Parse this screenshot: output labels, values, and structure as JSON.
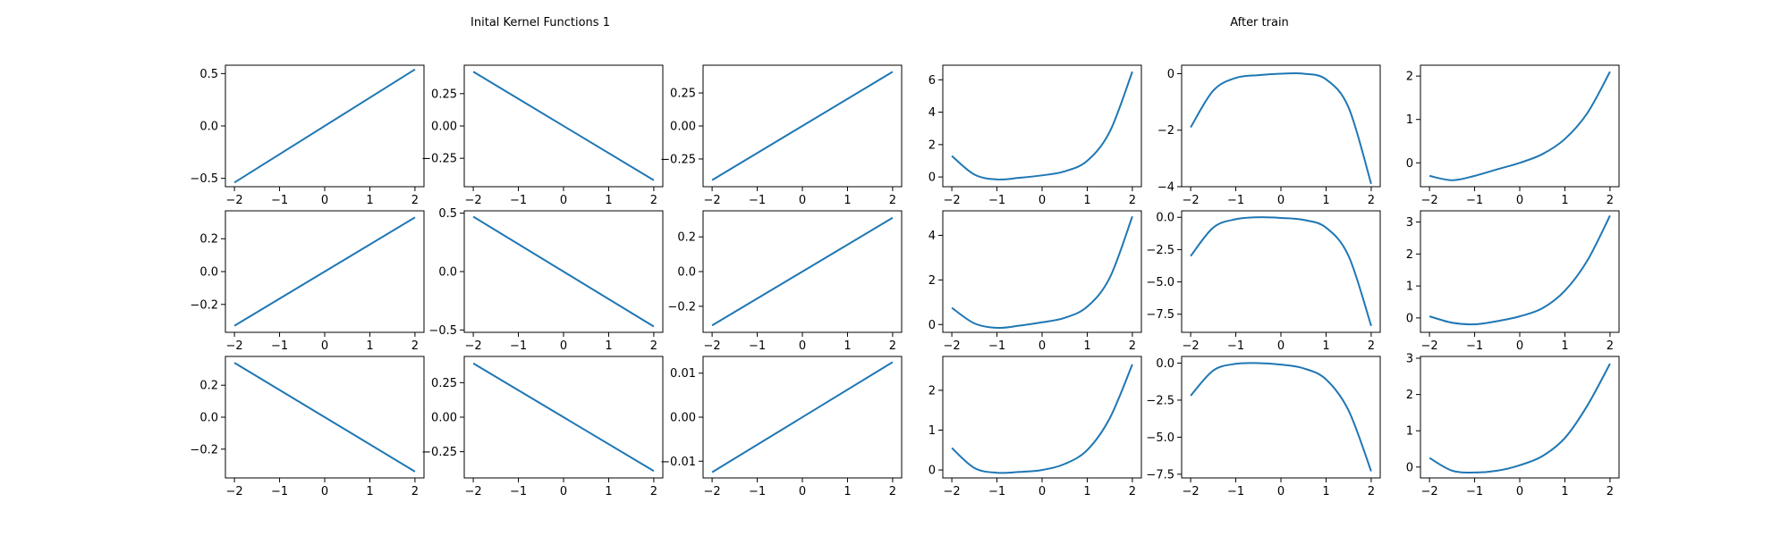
{
  "figure": {
    "title_left": "Inital Kernel Functions 1",
    "title_right": "After train",
    "line_color": "#1f77b4"
  },
  "chart_data": [
    {
      "type": "line",
      "xlim": [
        -2.2,
        2.2
      ],
      "ylim": [
        -0.58,
        0.58
      ],
      "xticks": [
        "−2",
        "−1",
        "0",
        "1",
        "2"
      ],
      "yticks": [
        {
          "v": 0.5,
          "label": "0.5"
        },
        {
          "v": 0,
          "label": "0.0"
        },
        {
          "v": -0.5,
          "label": "−0.5"
        }
      ],
      "series": [
        {
          "x": [
            -2,
            2
          ],
          "y": [
            -0.54,
            0.54
          ]
        }
      ]
    },
    {
      "type": "line",
      "xlim": [
        -2.2,
        2.2
      ],
      "ylim": [
        -0.47,
        0.47
      ],
      "xticks": [
        "−2",
        "−1",
        "0",
        "1",
        "2"
      ],
      "yticks": [
        {
          "v": 0.25,
          "label": "0.25"
        },
        {
          "v": 0,
          "label": "0.00"
        },
        {
          "v": -0.25,
          "label": "−0.25"
        }
      ],
      "series": [
        {
          "x": [
            -2,
            2
          ],
          "y": [
            0.42,
            -0.42
          ]
        }
      ]
    },
    {
      "type": "line",
      "xlim": [
        -2.2,
        2.2
      ],
      "ylim": [
        -0.46,
        0.46
      ],
      "xticks": [
        "−2",
        "−1",
        "0",
        "1",
        "2"
      ],
      "yticks": [
        {
          "v": 0.25,
          "label": "0.25"
        },
        {
          "v": 0,
          "label": "0.00"
        },
        {
          "v": -0.25,
          "label": "−0.25"
        }
      ],
      "series": [
        {
          "x": [
            -2,
            2
          ],
          "y": [
            -0.41,
            0.41
          ]
        }
      ]
    },
    {
      "type": "line",
      "xlim": [
        -2.2,
        2.2
      ],
      "ylim": [
        -0.6,
        6.9
      ],
      "xticks": [
        "−2",
        "−1",
        "0",
        "1",
        "2"
      ],
      "yticks": [
        {
          "v": 6,
          "label": "6"
        },
        {
          "v": 4,
          "label": "4"
        },
        {
          "v": 2,
          "label": "2"
        },
        {
          "v": 0,
          "label": "0"
        }
      ],
      "series": [
        {
          "x": [
            -2,
            -1.5,
            -1,
            -0.5,
            0,
            0.5,
            1,
            1.5,
            2
          ],
          "y": [
            1.3,
            0.15,
            -0.15,
            -0.05,
            0.1,
            0.35,
            1.0,
            2.8,
            6.5
          ]
        }
      ]
    },
    {
      "type": "line",
      "xlim": [
        -2.2,
        2.2
      ],
      "ylim": [
        -4.0,
        0.3
      ],
      "xticks": [
        "−2",
        "−1",
        "0",
        "1",
        "2"
      ],
      "yticks": [
        {
          "v": 0,
          "label": "0"
        },
        {
          "v": -2,
          "label": "−2"
        },
        {
          "v": -4,
          "label": "−4"
        }
      ],
      "series": [
        {
          "x": [
            -2,
            -1.5,
            -1,
            -0.5,
            0,
            0.5,
            1,
            1.5,
            2
          ],
          "y": [
            -1.9,
            -0.6,
            -0.15,
            -0.05,
            0.0,
            0.0,
            -0.2,
            -1.2,
            -3.9
          ]
        }
      ]
    },
    {
      "type": "line",
      "xlim": [
        -2.2,
        2.2
      ],
      "ylim": [
        -0.55,
        2.25
      ],
      "xticks": [
        "−2",
        "−1",
        "0",
        "1",
        "2"
      ],
      "yticks": [
        {
          "v": 2,
          "label": "2"
        },
        {
          "v": 1,
          "label": "1"
        },
        {
          "v": 0,
          "label": "0"
        }
      ],
      "series": [
        {
          "x": [
            -2,
            -1.5,
            -1,
            -0.5,
            0,
            0.5,
            1,
            1.5,
            2
          ],
          "y": [
            -0.3,
            -0.4,
            -0.3,
            -0.15,
            0.0,
            0.2,
            0.55,
            1.15,
            2.1
          ]
        }
      ]
    },
    {
      "type": "line",
      "xlim": [
        -2.2,
        2.2
      ],
      "ylim": [
        -0.37,
        0.37
      ],
      "xticks": [
        "−2",
        "−1",
        "0",
        "1",
        "2"
      ],
      "yticks": [
        {
          "v": 0.2,
          "label": "0.2"
        },
        {
          "v": 0,
          "label": "0.0"
        },
        {
          "v": -0.2,
          "label": "−0.2"
        }
      ],
      "series": [
        {
          "x": [
            -2,
            2
          ],
          "y": [
            -0.33,
            0.33
          ]
        }
      ]
    },
    {
      "type": "line",
      "xlim": [
        -2.2,
        2.2
      ],
      "ylim": [
        -0.52,
        0.52
      ],
      "xticks": [
        "−2",
        "−1",
        "0",
        "1",
        "2"
      ],
      "yticks": [
        {
          "v": 0.5,
          "label": "0.5"
        },
        {
          "v": 0,
          "label": "0.0"
        },
        {
          "v": -0.5,
          "label": "−0.5"
        }
      ],
      "series": [
        {
          "x": [
            -2,
            2
          ],
          "y": [
            0.47,
            -0.47
          ]
        }
      ]
    },
    {
      "type": "line",
      "xlim": [
        -2.2,
        2.2
      ],
      "ylim": [
        -0.35,
        0.35
      ],
      "xticks": [
        "−2",
        "−1",
        "0",
        "1",
        "2"
      ],
      "yticks": [
        {
          "v": 0.2,
          "label": "0.2"
        },
        {
          "v": 0,
          "label": "0.0"
        },
        {
          "v": -0.2,
          "label": "−0.2"
        }
      ],
      "series": [
        {
          "x": [
            -2,
            2
          ],
          "y": [
            -0.31,
            0.31
          ]
        }
      ]
    },
    {
      "type": "line",
      "xlim": [
        -2.2,
        2.2
      ],
      "ylim": [
        -0.35,
        5.1
      ],
      "xticks": [
        "−2",
        "−1",
        "0",
        "1",
        "2"
      ],
      "yticks": [
        {
          "v": 4,
          "label": "4"
        },
        {
          "v": 2,
          "label": "2"
        },
        {
          "v": 0,
          "label": "0"
        }
      ],
      "series": [
        {
          "x": [
            -2,
            -1.5,
            -1,
            -0.5,
            0,
            0.5,
            1,
            1.5,
            2
          ],
          "y": [
            0.75,
            0.05,
            -0.15,
            -0.05,
            0.1,
            0.3,
            0.8,
            2.1,
            4.85
          ]
        }
      ]
    },
    {
      "type": "line",
      "xlim": [
        -2.2,
        2.2
      ],
      "ylim": [
        -8.9,
        0.5
      ],
      "xticks": [
        "−2",
        "−1",
        "0",
        "1",
        "2"
      ],
      "yticks": [
        {
          "v": 0,
          "label": "0.0"
        },
        {
          "v": -2.5,
          "label": "−2.5"
        },
        {
          "v": -5,
          "label": "−5.0"
        },
        {
          "v": -7.5,
          "label": "−7.5"
        }
      ],
      "series": [
        {
          "x": [
            -2,
            -1.5,
            -1,
            -0.5,
            0,
            0.5,
            1,
            1.5,
            2
          ],
          "y": [
            -3.0,
            -0.8,
            -0.15,
            0.0,
            -0.05,
            -0.2,
            -0.8,
            -3.0,
            -8.4
          ]
        }
      ]
    },
    {
      "type": "line",
      "xlim": [
        -2.2,
        2.2
      ],
      "ylim": [
        -0.45,
        3.35
      ],
      "xticks": [
        "−2",
        "−1",
        "0",
        "1",
        "2"
      ],
      "yticks": [
        {
          "v": 3,
          "label": "3"
        },
        {
          "v": 2,
          "label": "2"
        },
        {
          "v": 1,
          "label": "1"
        },
        {
          "v": 0,
          "label": "0"
        }
      ],
      "series": [
        {
          "x": [
            -2,
            -1.5,
            -1,
            -0.5,
            0,
            0.5,
            1,
            1.5,
            2
          ],
          "y": [
            0.05,
            -0.15,
            -0.2,
            -0.1,
            0.05,
            0.3,
            0.85,
            1.8,
            3.2
          ]
        }
      ]
    },
    {
      "type": "line",
      "xlim": [
        -2.2,
        2.2
      ],
      "ylim": [
        -0.38,
        0.38
      ],
      "xticks": [
        "−2",
        "−1",
        "0",
        "1",
        "2"
      ],
      "yticks": [
        {
          "v": 0.2,
          "label": "0.2"
        },
        {
          "v": 0,
          "label": "0.0"
        },
        {
          "v": -0.2,
          "label": "−0.2"
        }
      ],
      "series": [
        {
          "x": [
            -2,
            2
          ],
          "y": [
            0.34,
            -0.34
          ]
        }
      ]
    },
    {
      "type": "line",
      "xlim": [
        -2.2,
        2.2
      ],
      "ylim": [
        -0.44,
        0.44
      ],
      "xticks": [
        "−2",
        "−1",
        "0",
        "1",
        "2"
      ],
      "yticks": [
        {
          "v": 0.25,
          "label": "0.25"
        },
        {
          "v": 0,
          "label": "0.00"
        },
        {
          "v": -0.25,
          "label": "−0.25"
        }
      ],
      "series": [
        {
          "x": [
            -2,
            2
          ],
          "y": [
            0.39,
            -0.39
          ]
        }
      ]
    },
    {
      "type": "line",
      "xlim": [
        -2.2,
        2.2
      ],
      "ylim": [
        -0.0138,
        0.0138
      ],
      "xticks": [
        "−2",
        "−1",
        "0",
        "1",
        "2"
      ],
      "yticks": [
        {
          "v": 0.01,
          "label": "0.01"
        },
        {
          "v": 0,
          "label": "0.00"
        },
        {
          "v": -0.01,
          "label": "−0.01"
        }
      ],
      "series": [
        {
          "x": [
            -2,
            2
          ],
          "y": [
            -0.0125,
            0.0125
          ]
        }
      ]
    },
    {
      "type": "line",
      "xlim": [
        -2.2,
        2.2
      ],
      "ylim": [
        -0.2,
        2.85
      ],
      "xticks": [
        "−2",
        "−1",
        "0",
        "1",
        "2"
      ],
      "yticks": [
        {
          "v": 2,
          "label": "2"
        },
        {
          "v": 1,
          "label": "1"
        },
        {
          "v": 0,
          "label": "0"
        }
      ],
      "series": [
        {
          "x": [
            -2,
            -1.5,
            -1,
            -0.5,
            0,
            0.5,
            1,
            1.5,
            2
          ],
          "y": [
            0.55,
            0.05,
            -0.07,
            -0.05,
            0.0,
            0.15,
            0.5,
            1.3,
            2.65
          ]
        }
      ]
    },
    {
      "type": "line",
      "xlim": [
        -2.2,
        2.2
      ],
      "ylim": [
        -7.75,
        0.45
      ],
      "xticks": [
        "−2",
        "−1",
        "0",
        "1",
        "2"
      ],
      "yticks": [
        {
          "v": 0,
          "label": "0.0"
        },
        {
          "v": -2.5,
          "label": "−2.5"
        },
        {
          "v": -5,
          "label": "−5.0"
        },
        {
          "v": -7.5,
          "label": "−7.5"
        }
      ],
      "series": [
        {
          "x": [
            -2,
            -1.5,
            -1,
            -0.5,
            0,
            0.5,
            1,
            1.5,
            2
          ],
          "y": [
            -2.2,
            -0.5,
            -0.05,
            0.0,
            -0.1,
            -0.35,
            -1.1,
            -3.2,
            -7.3
          ]
        }
      ]
    },
    {
      "type": "line",
      "xlim": [
        -2.2,
        2.2
      ],
      "ylim": [
        -0.3,
        3.05
      ],
      "xticks": [
        "−2",
        "−1",
        "0",
        "1",
        "2"
      ],
      "yticks": [
        {
          "v": 3,
          "label": "3"
        },
        {
          "v": 2,
          "label": "2"
        },
        {
          "v": 1,
          "label": "1"
        },
        {
          "v": 0,
          "label": "0"
        }
      ],
      "series": [
        {
          "x": [
            -2,
            -1.5,
            -1,
            -0.5,
            0,
            0.5,
            1,
            1.5,
            2
          ],
          "y": [
            0.25,
            -0.1,
            -0.15,
            -0.1,
            0.05,
            0.3,
            0.8,
            1.7,
            2.85
          ]
        }
      ]
    }
  ]
}
